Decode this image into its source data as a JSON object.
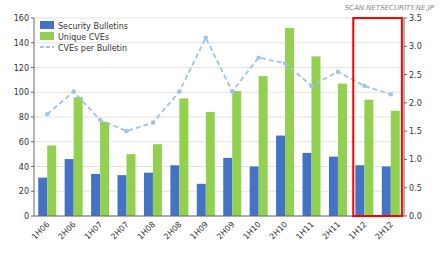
{
  "chart_data": {
    "type": "bar",
    "categories": [
      "1H06",
      "2H06",
      "1H07",
      "2H07",
      "1H08",
      "2H08",
      "1H09",
      "2H09",
      "1H10",
      "2H10",
      "1H11",
      "2H11",
      "1H12",
      "2H12"
    ],
    "series": [
      {
        "name": "Security Bulletins",
        "type": "bar",
        "color": "#4472C4",
        "values": [
          31,
          46,
          34,
          33,
          35,
          41,
          26,
          47,
          40,
          65,
          51,
          48,
          41,
          40
        ]
      },
      {
        "name": "Unique CVEs",
        "type": "bar",
        "color": "#92D050",
        "values": [
          57,
          96,
          76,
          50,
          58,
          95,
          84,
          101,
          113,
          152,
          129,
          107,
          94,
          85
        ]
      },
      {
        "name": "CVEs per Bulletin",
        "type": "line",
        "axis": "y2",
        "color": "#9DC3E6",
        "line_style": "dashed",
        "marker": "circle",
        "values": [
          1.8,
          2.2,
          1.7,
          1.5,
          1.65,
          2.2,
          3.15,
          2.2,
          2.8,
          2.7,
          2.3,
          2.55,
          2.3,
          2.15
        ]
      }
    ],
    "ylim": [
      0,
      160
    ],
    "yticks": [
      0,
      20,
      40,
      60,
      80,
      100,
      120,
      140,
      160
    ],
    "y2lim": [
      0,
      3.5
    ],
    "y2ticks": [
      {
        "value": 0,
        "label": "0.0"
      },
      0.5,
      {
        "value": 1,
        "label": "1.0"
      },
      1.5,
      {
        "value": 2,
        "label": "2.0"
      },
      2.5,
      {
        "value": 3,
        "label": "3.0"
      },
      3.5
    ],
    "grid": true,
    "legend": "upper left",
    "annotations": [
      "SCAN.NETSECURITY.NE.JP"
    ]
  }
}
